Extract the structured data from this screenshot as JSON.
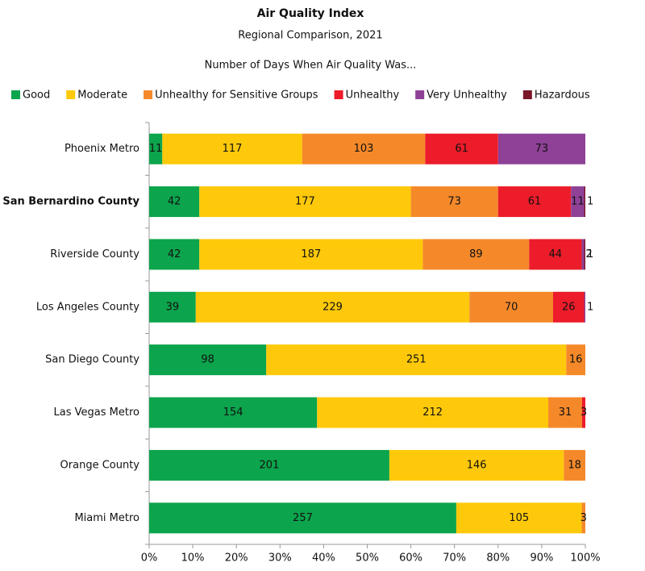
{
  "chart_data": {
    "type": "stacked-bar-100",
    "orientation": "horizontal",
    "title": "Air Quality Index",
    "subtitle": "Regional Comparison, 2021",
    "legend_title": "Number of Days When Air Quality Was...",
    "categories": [
      "Phoenix Metro",
      "San Bernardino County",
      "Riverside County",
      "Los Angeles County",
      "San Diego County",
      "Las Vegas Metro",
      "Orange County",
      "Miami Metro"
    ],
    "highlight_index": 1,
    "series": [
      {
        "name": "Good",
        "color": "#0ca44c",
        "text_color": "#ffffff",
        "values": [
          11,
          42,
          42,
          39,
          98,
          154,
          201,
          257
        ]
      },
      {
        "name": "Moderate",
        "color": "#fec90a",
        "text_color": "#111111",
        "values": [
          117,
          177,
          187,
          229,
          251,
          212,
          146,
          105
        ]
      },
      {
        "name": "Unhealthy for Sensitive Groups",
        "color": "#f5892a",
        "text_color": "#111111",
        "values": [
          103,
          73,
          89,
          70,
          16,
          31,
          18,
          3
        ]
      },
      {
        "name": "Unhealthy",
        "color": "#ec1c2a",
        "text_color": "#ffffff",
        "values": [
          61,
          61,
          44,
          26,
          null,
          3,
          null,
          null
        ]
      },
      {
        "name": "Very Unhealthy",
        "color": "#8e4197",
        "text_color": "#ffffff",
        "values": [
          73,
          11,
          2,
          1,
          null,
          null,
          null,
          null
        ]
      },
      {
        "name": "Hazardous",
        "color": "#7a1628",
        "text_color": "#111111",
        "values": [
          null,
          1,
          1,
          null,
          null,
          null,
          null,
          null
        ]
      }
    ],
    "xlim": [
      0,
      100
    ],
    "xticks": [
      {
        "value": 0,
        "label": "0%"
      },
      {
        "value": 10,
        "label": "10%"
      },
      {
        "value": 20,
        "label": "20%"
      },
      {
        "value": 30,
        "label": "30%"
      },
      {
        "value": 40,
        "label": "40%"
      },
      {
        "value": 50,
        "label": "50%"
      },
      {
        "value": 60,
        "label": "60%"
      },
      {
        "value": 70,
        "label": "70%"
      },
      {
        "value": 80,
        "label": "80%"
      },
      {
        "value": 90,
        "label": "90%"
      },
      {
        "value": 100,
        "label": "100%"
      }
    ]
  }
}
